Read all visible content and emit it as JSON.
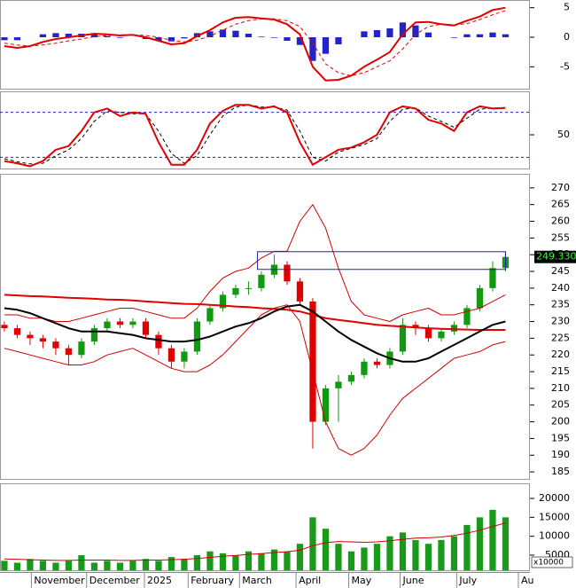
{
  "chart_data": [
    {
      "type": "macd",
      "xlim": [
        -0.34,
        40.9
      ],
      "ylim": [
        -8.7,
        6.3
      ],
      "yticks": [
        5,
        0,
        -5
      ],
      "x": [
        0,
        1,
        2,
        3,
        4,
        5,
        6,
        7,
        8,
        9,
        10,
        11,
        12,
        13,
        14,
        15,
        16,
        17,
        18,
        19,
        20,
        21,
        22,
        23,
        24,
        25,
        26,
        27,
        28,
        29,
        30,
        31,
        32,
        33,
        34,
        35,
        36,
        37,
        38,
        39
      ],
      "series": [
        {
          "style": "bar",
          "color": "#2323c8",
          "values": [
            -0.5,
            -0.5,
            0,
            0.5,
            0.7,
            0.6,
            0.6,
            0.5,
            0.2,
            -0.1,
            0,
            -0.3,
            -0.6,
            -0.7,
            -0.2,
            0.7,
            1,
            1.3,
            1.1,
            0.6,
            0.1,
            -0.1,
            -0.6,
            -1.3,
            -4,
            -2.8,
            -1.2,
            0,
            1,
            1.2,
            1.5,
            2.5,
            2,
            0.8,
            0,
            -0.1,
            0.5,
            0.5,
            0.8,
            0.5
          ]
        },
        {
          "style": "dashed",
          "color": "#e00000",
          "values": [
            -1,
            -1.3,
            -1.5,
            -1.3,
            -1,
            -0.6,
            -0.3,
            0.1,
            0.3,
            0.4,
            0.4,
            0.3,
            0,
            -0.5,
            -0.8,
            -0.5,
            0.2,
            1.2,
            2.2,
            2.8,
            3.1,
            3.1,
            2.8,
            1.8,
            -1,
            -4.5,
            -6,
            -6.5,
            -6,
            -5,
            -4,
            -2,
            0.5,
            1.8,
            2.2,
            2.1,
            2.3,
            3,
            3.8,
            4.5
          ]
        },
        {
          "style": "line",
          "color": "#e00000",
          "values": [
            -1.5,
            -1.8,
            -1.5,
            -0.8,
            -0.3,
            0,
            0.3,
            0.6,
            0.5,
            0.3,
            0.4,
            0,
            -0.6,
            -1.2,
            -1,
            0.2,
            1.2,
            2.5,
            3.3,
            3.4,
            3.2,
            3,
            2.2,
            0.5,
            -5,
            -7.3,
            -7.2,
            -6.5,
            -5,
            -3.8,
            -2.5,
            0.5,
            2.5,
            2.6,
            2.2,
            2,
            2.8,
            3.5,
            4.6,
            5
          ]
        }
      ]
    },
    {
      "type": "line",
      "xlim": [
        -0.34,
        40.9
      ],
      "ylim": [
        5,
        108
      ],
      "yticks": [
        50
      ],
      "levels": [
        80,
        20
      ],
      "x": [
        0,
        1,
        2,
        3,
        4,
        5,
        6,
        7,
        8,
        9,
        10,
        11,
        12,
        13,
        14,
        15,
        16,
        17,
        18,
        19,
        20,
        21,
        22,
        23,
        24,
        25,
        26,
        27,
        28,
        29,
        30,
        31,
        32,
        33,
        34,
        35,
        36,
        37,
        38,
        39
      ],
      "series": [
        {
          "style": "dashed",
          "color": "#000000",
          "values": [
            18,
            14,
            11,
            12,
            22,
            30,
            45,
            68,
            82,
            80,
            78,
            78,
            55,
            25,
            12,
            22,
            50,
            75,
            87,
            90,
            87,
            87,
            83,
            55,
            20,
            15,
            27,
            32,
            37,
            45,
            68,
            84,
            86,
            75,
            68,
            60,
            72,
            84,
            86,
            85
          ]
        },
        {
          "style": "line",
          "color": "#e00000",
          "values": [
            15,
            12,
            8,
            15,
            30,
            35,
            55,
            80,
            85,
            75,
            80,
            78,
            40,
            10,
            10,
            30,
            65,
            82,
            90,
            90,
            85,
            88,
            80,
            40,
            10,
            20,
            30,
            33,
            40,
            50,
            80,
            88,
            85,
            70,
            65,
            55,
            80,
            88,
            85,
            86
          ]
        }
      ]
    },
    {
      "type": "candlestick",
      "xlim": [
        -0.34,
        40.9
      ],
      "ylim": [
        182.9,
        274.2
      ],
      "yticks": [
        270,
        265,
        260,
        255,
        250,
        245,
        240,
        235,
        230,
        225,
        220,
        215,
        210,
        205,
        200,
        195,
        190,
        185
      ],
      "x": [
        0,
        1,
        2,
        3,
        4,
        5,
        6,
        7,
        8,
        9,
        10,
        11,
        12,
        13,
        14,
        15,
        16,
        17,
        18,
        19,
        20,
        21,
        22,
        23,
        24,
        25,
        26,
        27,
        28,
        29,
        30,
        31,
        32,
        33,
        34,
        35,
        36,
        37,
        38,
        39
      ],
      "open": [
        229,
        228,
        226,
        225,
        224,
        222,
        220,
        224,
        228,
        230,
        229,
        230,
        226,
        222,
        218,
        221,
        230,
        234,
        238,
        240,
        240,
        244,
        247,
        242,
        236,
        200,
        210,
        212,
        214,
        218,
        217,
        221,
        229,
        228,
        225,
        227,
        229,
        234,
        240,
        246
      ],
      "high": [
        230,
        229,
        227,
        226,
        225,
        223,
        225,
        229,
        231,
        231,
        231,
        231,
        227,
        223,
        222,
        231,
        235,
        239,
        241,
        242,
        245,
        250,
        248,
        243,
        237,
        211,
        214,
        215,
        219,
        219,
        222,
        231,
        230,
        229,
        228,
        230,
        235,
        241,
        248,
        251
      ],
      "low": [
        227,
        225,
        223,
        222,
        220,
        217,
        219,
        223,
        227,
        228,
        228,
        225,
        220,
        216,
        216,
        220,
        229,
        233,
        237,
        238,
        239,
        243,
        241,
        235,
        192,
        199,
        200,
        211,
        213,
        216,
        216,
        220,
        226,
        224,
        224,
        226,
        228,
        233,
        239,
        245
      ],
      "close": [
        228,
        226,
        225,
        224,
        222,
        220,
        224,
        228,
        230,
        229,
        230,
        226,
        222,
        218,
        221,
        230,
        234,
        238,
        240,
        240,
        244,
        247,
        242,
        236,
        200,
        210,
        212,
        214,
        218,
        217,
        221,
        229,
        228,
        225,
        227,
        229,
        234,
        240,
        246,
        249.33
      ],
      "up_color": "#119911",
      "down_color": "#e00000",
      "last_price_label": "249.3300",
      "series": [
        {
          "style": "thin",
          "color": "#d00000",
          "values": [
            232,
            232,
            231,
            231,
            230,
            230,
            231,
            232,
            233,
            234,
            234,
            233,
            232,
            231,
            231,
            234,
            239,
            243,
            245,
            246,
            249,
            251,
            251,
            260,
            265,
            258,
            246,
            236,
            232,
            231,
            230,
            232,
            233,
            234,
            232,
            232,
            233,
            234,
            236,
            238
          ]
        },
        {
          "style": "thin",
          "color": "#d00000",
          "values": [
            222,
            221,
            220,
            219,
            218,
            217,
            217,
            218,
            220,
            221,
            222,
            220,
            218,
            216,
            215,
            215,
            217,
            220,
            224,
            228,
            232,
            234,
            235,
            230,
            215,
            200,
            192,
            190,
            192,
            196,
            202,
            207,
            210,
            213,
            216,
            219,
            220,
            221,
            223,
            224
          ]
        },
        {
          "style": "line",
          "color": "#e00000",
          "values": [
            238,
            237.8,
            237.6,
            237.5,
            237.3,
            237.1,
            237,
            236.8,
            236.6,
            236.5,
            236.3,
            236,
            235.8,
            235.5,
            235.3,
            235.2,
            235,
            234.8,
            234.5,
            234.3,
            234,
            233.8,
            233.5,
            233,
            232,
            231,
            230.5,
            230,
            229.5,
            229,
            228.7,
            228.5,
            228.2,
            228,
            227.8,
            227.7,
            227.6,
            227.5,
            227.5,
            227.5
          ]
        },
        {
          "style": "line",
          "color": "#000000",
          "values": [
            234,
            233.5,
            232.5,
            231,
            229.5,
            228,
            227,
            227,
            227,
            226.5,
            226,
            225,
            224.5,
            224,
            224,
            224.5,
            225.5,
            227,
            228.5,
            229.5,
            231,
            233,
            234.5,
            235,
            233,
            230,
            227,
            224.5,
            222.5,
            220.5,
            219,
            218,
            218,
            219,
            221,
            223,
            225,
            227,
            229,
            230
          ]
        }
      ],
      "box": {
        "x": [
          19.7,
          39.0
        ],
        "y": [
          245.6,
          250.9
        ],
        "color": "#2020b0"
      }
    },
    {
      "type": "bar",
      "xlim": [
        -0.34,
        40.9
      ],
      "ylim": [
        1000,
        24000
      ],
      "yticks": [
        20000,
        15000,
        10000,
        5000
      ],
      "unit_label": "x10000",
      "x": [
        0,
        1,
        2,
        3,
        4,
        5,
        6,
        7,
        8,
        9,
        10,
        11,
        12,
        13,
        14,
        15,
        16,
        17,
        18,
        19,
        20,
        21,
        22,
        23,
        24,
        25,
        26,
        27,
        28,
        29,
        30,
        31,
        32,
        33,
        34,
        35,
        36,
        37,
        38,
        39
      ],
      "series": [
        {
          "style": "bar",
          "color": "#1a9a1a",
          "values": [
            3500,
            3000,
            4000,
            3500,
            3000,
            3500,
            5000,
            3000,
            3500,
            3000,
            3500,
            4000,
            3500,
            4500,
            4000,
            5000,
            6000,
            5500,
            5000,
            6000,
            5500,
            6500,
            6000,
            8000,
            15000,
            12000,
            8000,
            6000,
            7000,
            8000,
            10000,
            11000,
            9000,
            8000,
            9000,
            10000,
            13000,
            15000,
            17000,
            15000
          ]
        },
        {
          "style": "thin",
          "color": "#d00000",
          "values": [
            4000,
            3900,
            3800,
            3700,
            3600,
            3600,
            3700,
            3700,
            3700,
            3600,
            3600,
            3700,
            3700,
            3800,
            3900,
            4100,
            4400,
            4700,
            4900,
            5200,
            5400,
            5700,
            5900,
            6300,
            7500,
            8300,
            8600,
            8500,
            8400,
            8500,
            8800,
            9200,
            9500,
            9600,
            9800,
            10200,
            10800,
            11600,
            12600,
            13500
          ]
        }
      ],
      "xticks": [
        {
          "value": 2.1,
          "label": "November"
        },
        {
          "value": 6.4,
          "label": "December"
        },
        {
          "value": 10.9,
          "label": "2025"
        },
        {
          "value": 14.3,
          "label": "February"
        },
        {
          "value": 18.3,
          "label": "March"
        },
        {
          "value": 22.7,
          "label": "April"
        },
        {
          "value": 26.8,
          "label": "May"
        },
        {
          "value": 30.8,
          "label": "June"
        },
        {
          "value": 35.2,
          "label": "July"
        },
        {
          "value": 40.0,
          "label": "Au"
        }
      ]
    }
  ]
}
